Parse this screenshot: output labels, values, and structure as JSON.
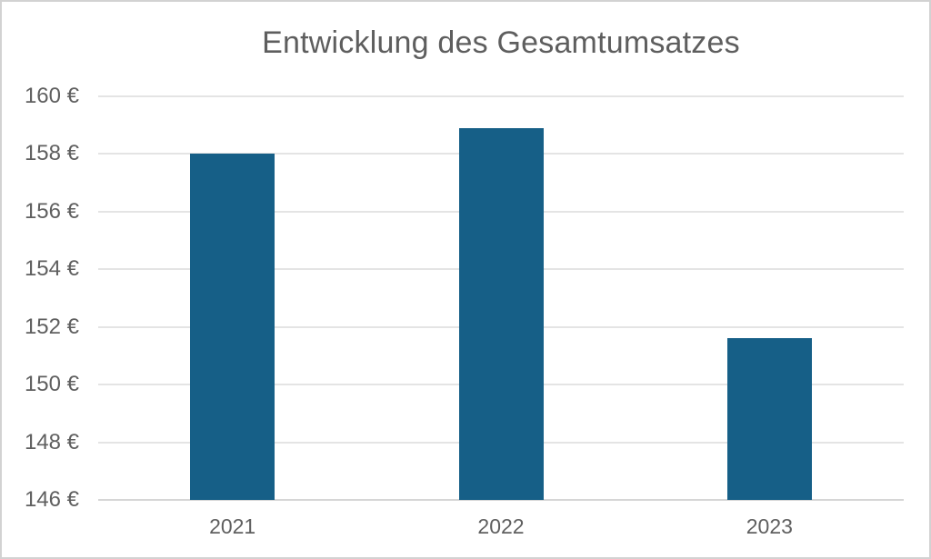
{
  "title": "Entwicklung des Gesamtumsatzes",
  "chart_data": {
    "type": "bar",
    "title": "Entwicklung des Gesamtumsatzes",
    "categories": [
      "2021",
      "2022",
      "2023"
    ],
    "values": [
      158.0,
      158.9,
      151.6
    ],
    "xlabel": "",
    "ylabel": "",
    "ylim": [
      146,
      160
    ],
    "yticks": [
      {
        "value": 160,
        "label": "160 €"
      },
      {
        "value": 158,
        "label": "158 €"
      },
      {
        "value": 156,
        "label": "156 €"
      },
      {
        "value": 154,
        "label": "154 €"
      },
      {
        "value": 152,
        "label": "152 €"
      },
      {
        "value": 150,
        "label": "150 €"
      },
      {
        "value": 148,
        "label": "148 €"
      },
      {
        "value": 146,
        "label": "146 €"
      }
    ],
    "grid": true,
    "legend_position": "none",
    "currency_symbol": "€"
  },
  "colors": {
    "bar": "#165f87",
    "gridline": "#e4e4e4",
    "baseline": "#d6d6d6",
    "tick_text": "#5f5f5f",
    "title_text": "#5e5e5e",
    "border": "#d2d2d2",
    "background": "#ffffff"
  }
}
